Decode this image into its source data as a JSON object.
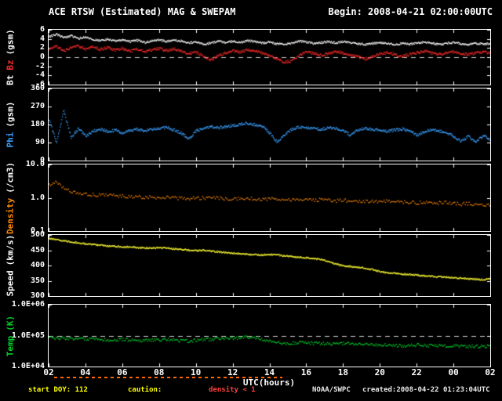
{
  "header": {
    "title": "ACE RTSW (Estimated) MAG & SWEPAM",
    "begin": "Begin: 2008-04-21 02:00:00UTC"
  },
  "footer": {
    "start_doy": "start DOY: 112",
    "caution": "caution:",
    "density_caution": "density < 1",
    "agency": "NOAA/SWPC",
    "created": "created:2008-04-22 01:23:04UTC"
  },
  "colors": {
    "background": "#000000",
    "frame": "#ffffff",
    "bt": "#ffffff",
    "bz": "#ff2a2a",
    "phi": "#3aa0ff",
    "density": "#ff8800",
    "speed": "#ffff33",
    "temp": "#00d02a",
    "caution": "#ff6600"
  },
  "chart_data": {
    "type": "multi-panel-time-series",
    "x_axis": {
      "label": "UTC(hours)",
      "lim": [
        2,
        26
      ],
      "ticks": [
        {
          "t": 2,
          "label": "02"
        },
        {
          "t": 4,
          "label": "04"
        },
        {
          "t": 6,
          "label": "06"
        },
        {
          "t": 8,
          "label": "08"
        },
        {
          "t": 10,
          "label": "10"
        },
        {
          "t": 12,
          "label": "12"
        },
        {
          "t": 14,
          "label": "14"
        },
        {
          "t": 16,
          "label": "16"
        },
        {
          "t": 18,
          "label": "18"
        },
        {
          "t": 20,
          "label": "20"
        },
        {
          "t": 22,
          "label": "22"
        },
        {
          "t": 24,
          "label": "00"
        },
        {
          "t": 26,
          "label": "02"
        }
      ]
    },
    "caution_strip": {
      "color": "#ff6600",
      "segments": [
        [
          2.3,
          14.7
        ]
      ]
    },
    "panels": [
      {
        "id": "mag",
        "type": "scatter",
        "scale": "linear",
        "ylim": [
          -6,
          6
        ],
        "ref_lines": [
          0
        ],
        "ylabel_parts": [
          {
            "text": "Bt",
            "color": "#ffffff"
          },
          {
            "text": "Bz",
            "color": "#ff2a2a"
          },
          {
            "text": "(gsm)",
            "color": "#ffffff"
          }
        ],
        "yticks": [
          {
            "v": 6,
            "label": "6"
          },
          {
            "v": 4,
            "label": "4"
          },
          {
            "v": 2,
            "label": "2"
          },
          {
            "v": 0,
            "label": "0"
          },
          {
            "v": -2,
            "label": "-2"
          },
          {
            "v": -4,
            "label": "-4"
          },
          {
            "v": -6,
            "label": "-6"
          }
        ],
        "series": [
          {
            "name": "Bt",
            "color": "#ffffff",
            "t0": 2,
            "dt": 0.4,
            "jitter": 0.22,
            "step": 0.025,
            "size": 1.2,
            "values": [
              4.6,
              5.1,
              4.4,
              4.8,
              4.2,
              4.5,
              4.0,
              3.7,
              4.0,
              3.6,
              3.9,
              3.5,
              3.8,
              3.3,
              3.7,
              3.9,
              3.5,
              3.9,
              3.6,
              3.2,
              3.4,
              2.9,
              3.2,
              3.6,
              3.3,
              3.6,
              3.3,
              3.7,
              3.5,
              3.2,
              3.4,
              3.0,
              2.9,
              3.2,
              3.6,
              3.4,
              3.1,
              3.3,
              3.5,
              3.2,
              3.5,
              3.2,
              3.0,
              2.9,
              3.1,
              3.3,
              3.1,
              2.9,
              3.1,
              2.9,
              3.2,
              3.4,
              3.1,
              2.9,
              3.1,
              3.3,
              3.0,
              2.9,
              3.1,
              3.0,
              3.0
            ]
          },
          {
            "name": "Bz",
            "color": "#ff2a2a",
            "t0": 2,
            "dt": 0.4,
            "jitter": 0.3,
            "step": 0.025,
            "size": 1.2,
            "values": [
              1.8,
              2.4,
              1.5,
              2.1,
              2.5,
              1.9,
              2.3,
              1.8,
              2.2,
              1.6,
              2.0,
              1.4,
              1.8,
              1.2,
              1.7,
              2.0,
              1.5,
              1.9,
              1.4,
              0.9,
              1.2,
              0.3,
              -0.5,
              0.4,
              1.0,
              1.5,
              1.2,
              1.7,
              1.4,
              1.0,
              0.4,
              -0.3,
              -1.0,
              -0.7,
              0.5,
              1.3,
              0.9,
              0.5,
              0.9,
              1.3,
              1.0,
              0.6,
              0.2,
              -0.3,
              0.3,
              0.8,
              1.1,
              0.7,
              0.3,
              0.7,
              1.1,
              1.4,
              1.0,
              0.7,
              1.0,
              1.3,
              0.9,
              0.7,
              1.0,
              1.2,
              1.0
            ]
          }
        ]
      },
      {
        "id": "phi",
        "type": "scatter",
        "scale": "linear",
        "ylim": [
          0,
          360
        ],
        "ref_lines": [],
        "ylabel_parts": [
          {
            "text": "Phi",
            "color": "#3aa0ff"
          },
          {
            "text": "(gsm)",
            "color": "#ffffff"
          }
        ],
        "yticks": [
          {
            "v": 360,
            "label": "360"
          },
          {
            "v": 270,
            "label": "270"
          },
          {
            "v": 180,
            "label": "180"
          },
          {
            "v": 90,
            "label": "90"
          },
          {
            "v": 0,
            "label": "0"
          }
        ],
        "series": [
          {
            "name": "Phi",
            "color": "#3aa0ff",
            "t0": 2,
            "dt": 0.4,
            "jitter": 7,
            "step": 0.03,
            "size": 1.3,
            "values": [
              210,
              90,
              250,
              120,
              160,
              125,
              150,
              160,
              148,
              155,
              140,
              152,
              160,
              150,
              158,
              162,
              168,
              155,
              140,
              110,
              150,
              165,
              172,
              166,
              172,
              178,
              184,
              188,
              182,
              172,
              140,
              95,
              130,
              158,
              170,
              168,
              162,
              158,
              168,
              164,
              150,
              128,
              158,
              162,
              158,
              153,
              148,
              156,
              160,
              152,
              128,
              148,
              155,
              150,
              145,
              122,
              100,
              125,
              92,
              128,
              105
            ]
          }
        ]
      },
      {
        "id": "density",
        "type": "scatter",
        "scale": "log",
        "ylim": [
          0.1,
          10
        ],
        "ref_lines": [],
        "ylabel_parts": [
          {
            "text": "Density",
            "color": "#ff8800"
          },
          {
            "text": "(/cm3)",
            "color": "#ffffff"
          }
        ],
        "yticks": [
          {
            "v": 10,
            "label": "10.0"
          },
          {
            "v": 1,
            "label": "1.0"
          },
          {
            "v": 0.1,
            "label": "0.1"
          }
        ],
        "series": [
          {
            "name": "Density",
            "color": "#ff8800",
            "t0": 2,
            "dt": 0.4,
            "jitter": 0.05,
            "step": 0.07,
            "size": 1.4,
            "values": [
              2.6,
              3.3,
              2.0,
              1.55,
              1.4,
              1.3,
              1.28,
              1.25,
              1.22,
              1.18,
              1.15,
              1.12,
              1.1,
              1.08,
              1.1,
              1.05,
              1.08,
              1.02,
              1.0,
              0.98,
              1.0,
              1.03,
              1.0,
              1.02,
              0.98,
              0.96,
              0.98,
              0.95,
              0.96,
              0.93,
              0.95,
              0.97,
              0.94,
              0.9,
              0.92,
              0.9,
              0.88,
              0.9,
              0.86,
              0.84,
              0.87,
              0.83,
              0.8,
              0.83,
              0.8,
              0.78,
              0.82,
              0.78,
              0.74,
              0.78,
              0.72,
              0.76,
              0.7,
              0.73,
              0.76,
              0.7,
              0.66,
              0.7,
              0.64,
              0.62,
              0.66
            ]
          }
        ]
      },
      {
        "id": "speed",
        "type": "scatter",
        "scale": "linear",
        "ylim": [
          300,
          500
        ],
        "ref_lines": [],
        "ylabel_parts": [
          {
            "text": "Speed",
            "color": "#ffffff"
          },
          {
            "text": "(km/s)",
            "color": "#ffffff"
          }
        ],
        "yticks": [
          {
            "v": 500,
            "label": "500"
          },
          {
            "v": 450,
            "label": "450"
          },
          {
            "v": 400,
            "label": "400"
          },
          {
            "v": 350,
            "label": "350"
          },
          {
            "v": 300,
            "label": "300"
          }
        ],
        "series": [
          {
            "name": "Speed",
            "color": "#ffff33",
            "t0": 2,
            "dt": 0.4,
            "jitter": 2.5,
            "step": 0.03,
            "size": 1.3,
            "values": [
              490,
              486,
              482,
              479,
              476,
              472,
              470,
              468,
              466,
              464,
              462,
              463,
              460,
              459,
              458,
              460,
              458,
              456,
              454,
              452,
              450,
              452,
              449,
              446,
              444,
              442,
              440,
              438,
              437,
              436,
              438,
              436,
              433,
              431,
              429,
              427,
              424,
              421,
              415,
              406,
              400,
              398,
              396,
              393,
              388,
              381,
              378,
              376,
              374,
              372,
              370,
              368,
              366,
              365,
              363,
              362,
              360,
              358,
              357,
              355,
              359
            ]
          }
        ]
      },
      {
        "id": "temp",
        "type": "scatter",
        "scale": "log",
        "ylim": [
          10000,
          1000000
        ],
        "ref_lines": [
          100000
        ],
        "ylabel_parts": [
          {
            "text": "Temp",
            "color": "#00d02a"
          },
          {
            "text": "(K)",
            "color": "#00d02a"
          }
        ],
        "yticks": [
          {
            "v": 1000000,
            "label": "1.0E+06"
          },
          {
            "v": 100000,
            "label": "1.0E+05"
          },
          {
            "v": 10000,
            "label": "1.0E+04"
          }
        ],
        "series": [
          {
            "name": "Temp",
            "color": "#00d02a",
            "t0": 2,
            "dt": 0.4,
            "jitter": 0.05,
            "step": 0.055,
            "size": 1.4,
            "values": [
              92000,
              84000,
              88000,
              82000,
              78000,
              81000,
              77000,
              80000,
              76000,
              74000,
              79000,
              76000,
              73000,
              71000,
              74000,
              76000,
              79000,
              74000,
              70000,
              69000,
              74000,
              77000,
              79000,
              81000,
              83000,
              86000,
              89000,
              91000,
              88000,
              80000,
              69000,
              61000,
              56000,
              59000,
              62000,
              61000,
              59000,
              57000,
              56000,
              54000,
              59000,
              57000,
              55000,
              53000,
              51000,
              50000,
              52000,
              50000,
              48000,
              50000,
              52000,
              50000,
              48000,
              49000,
              47000,
              49000,
              46000,
              48000,
              46000,
              47000,
              48000
            ]
          }
        ]
      }
    ]
  }
}
